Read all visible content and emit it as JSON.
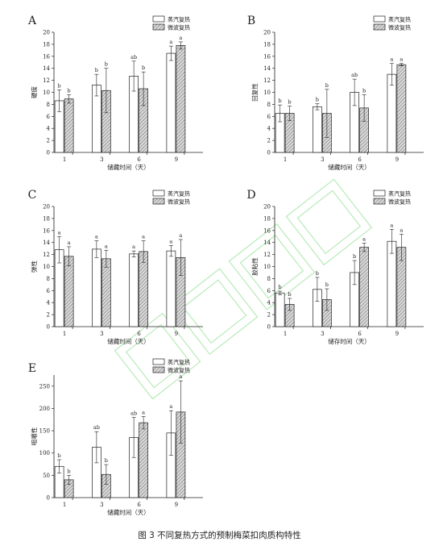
{
  "figure_caption": "图 3  不同复热方式的预制梅菜扣肉质构特性",
  "legend_labels": [
    "蒸汽复热",
    "微波复热"
  ],
  "colors": {
    "steam_fill": "#ffffff",
    "microwave_fill": "#d9d9d9",
    "stroke": "#222222",
    "watermark": "#7fd97f"
  },
  "chart_data": [
    {
      "panel": "A",
      "type": "bar",
      "categories": [
        "1",
        "3",
        "6",
        "9"
      ],
      "xlabel": "储藏时间（天）",
      "ylabel": "硬度",
      "ylim": [
        0,
        20
      ],
      "yticks": [
        0,
        2,
        4,
        6,
        8,
        10,
        12,
        14,
        16,
        18,
        20
      ],
      "legend": "top-right",
      "series": [
        {
          "name": "蒸汽复热",
          "values": [
            8.6,
            11.2,
            12.7,
            16.5
          ],
          "errors": [
            1.8,
            1.8,
            2.5,
            1.2
          ],
          "letters": [
            "b",
            "b",
            "ab",
            "a"
          ]
        },
        {
          "name": "微波复热",
          "values": [
            8.9,
            10.3,
            10.6,
            17.8
          ],
          "errors": [
            0.7,
            3.7,
            2.8,
            0.6
          ],
          "letters": [
            "b",
            "b",
            "b",
            "a"
          ]
        }
      ]
    },
    {
      "panel": "B",
      "type": "bar",
      "categories": [
        "1",
        "3",
        "6",
        "9"
      ],
      "xlabel": "储藏时间（天）",
      "ylabel": "回复性",
      "ylim": [
        0,
        20
      ],
      "yticks": [
        0,
        2,
        4,
        6,
        8,
        10,
        12,
        14,
        16,
        18,
        20
      ],
      "legend": "top-right",
      "series": [
        {
          "name": "蒸汽复热",
          "values": [
            6.5,
            7.6,
            10.0,
            13.0
          ],
          "errors": [
            1.4,
            0.5,
            2.2,
            1.8
          ],
          "letters": [
            "b",
            "b",
            "ab",
            "a"
          ]
        },
        {
          "name": "微波复热",
          "values": [
            6.5,
            6.5,
            7.4,
            14.6
          ],
          "errors": [
            1.2,
            4.0,
            2.2,
            0.2
          ],
          "letters": [
            "b",
            "b",
            "b",
            "a"
          ]
        }
      ]
    },
    {
      "panel": "C",
      "type": "bar",
      "categories": [
        "1",
        "3",
        "6",
        "9"
      ],
      "xlabel": "储藏时间（天）",
      "ylabel": "弹性",
      "ylim": [
        0,
        20
      ],
      "yticks": [
        0,
        2,
        4,
        6,
        8,
        10,
        12,
        14,
        16,
        18,
        20
      ],
      "legend": "top-right",
      "series": [
        {
          "name": "蒸汽复热",
          "values": [
            12.8,
            12.9,
            12.1,
            12.6
          ],
          "errors": [
            2.2,
            1.4,
            0.5,
            0.9
          ],
          "letters": [
            "a",
            "a",
            "a",
            "a"
          ]
        },
        {
          "name": "微波复热",
          "values": [
            11.7,
            11.3,
            12.5,
            11.5
          ],
          "errors": [
            1.6,
            1.4,
            1.8,
            3.0
          ],
          "letters": [
            "a",
            "a",
            "a",
            "a"
          ]
        }
      ]
    },
    {
      "panel": "D",
      "type": "bar",
      "categories": [
        "1",
        "3",
        "6",
        "9"
      ],
      "xlabel": "储存时间（天）",
      "ylabel": "胶粘性",
      "ylim": [
        0,
        20
      ],
      "yticks": [
        0,
        2,
        4,
        6,
        8,
        10,
        12,
        14,
        16,
        18,
        20
      ],
      "legend": "top-right",
      "series": [
        {
          "name": "蒸汽复热",
          "values": [
            5.6,
            6.2,
            9.0,
            14.2
          ],
          "errors": [
            0.3,
            2.0,
            2.0,
            2.0
          ],
          "letters": [
            "b",
            "b",
            "b",
            "a"
          ]
        },
        {
          "name": "微波复热",
          "values": [
            3.7,
            4.5,
            13.2,
            13.2
          ],
          "errors": [
            1.0,
            1.8,
            0.7,
            2.2
          ],
          "letters": [
            "b",
            "b",
            "a",
            "a"
          ]
        }
      ]
    },
    {
      "panel": "E",
      "type": "bar",
      "categories": [
        "1",
        "3",
        "6",
        "9"
      ],
      "xlabel": "储藏时间（天）",
      "ylabel": "咀嚼性",
      "ylim": [
        0,
        275
      ],
      "yticks": [
        0,
        50,
        100,
        150,
        200,
        250
      ],
      "legend": "top-right",
      "series": [
        {
          "name": "蒸汽复热",
          "values": [
            70,
            113,
            135,
            145
          ],
          "errors": [
            15,
            35,
            45,
            50
          ],
          "letters": [
            "b",
            "ab",
            "ab",
            "a"
          ]
        },
        {
          "name": "微波复热",
          "values": [
            40,
            52,
            168,
            192
          ],
          "errors": [
            10,
            22,
            14,
            70
          ],
          "letters": [
            "b",
            "b",
            "a",
            "a"
          ]
        }
      ]
    }
  ]
}
